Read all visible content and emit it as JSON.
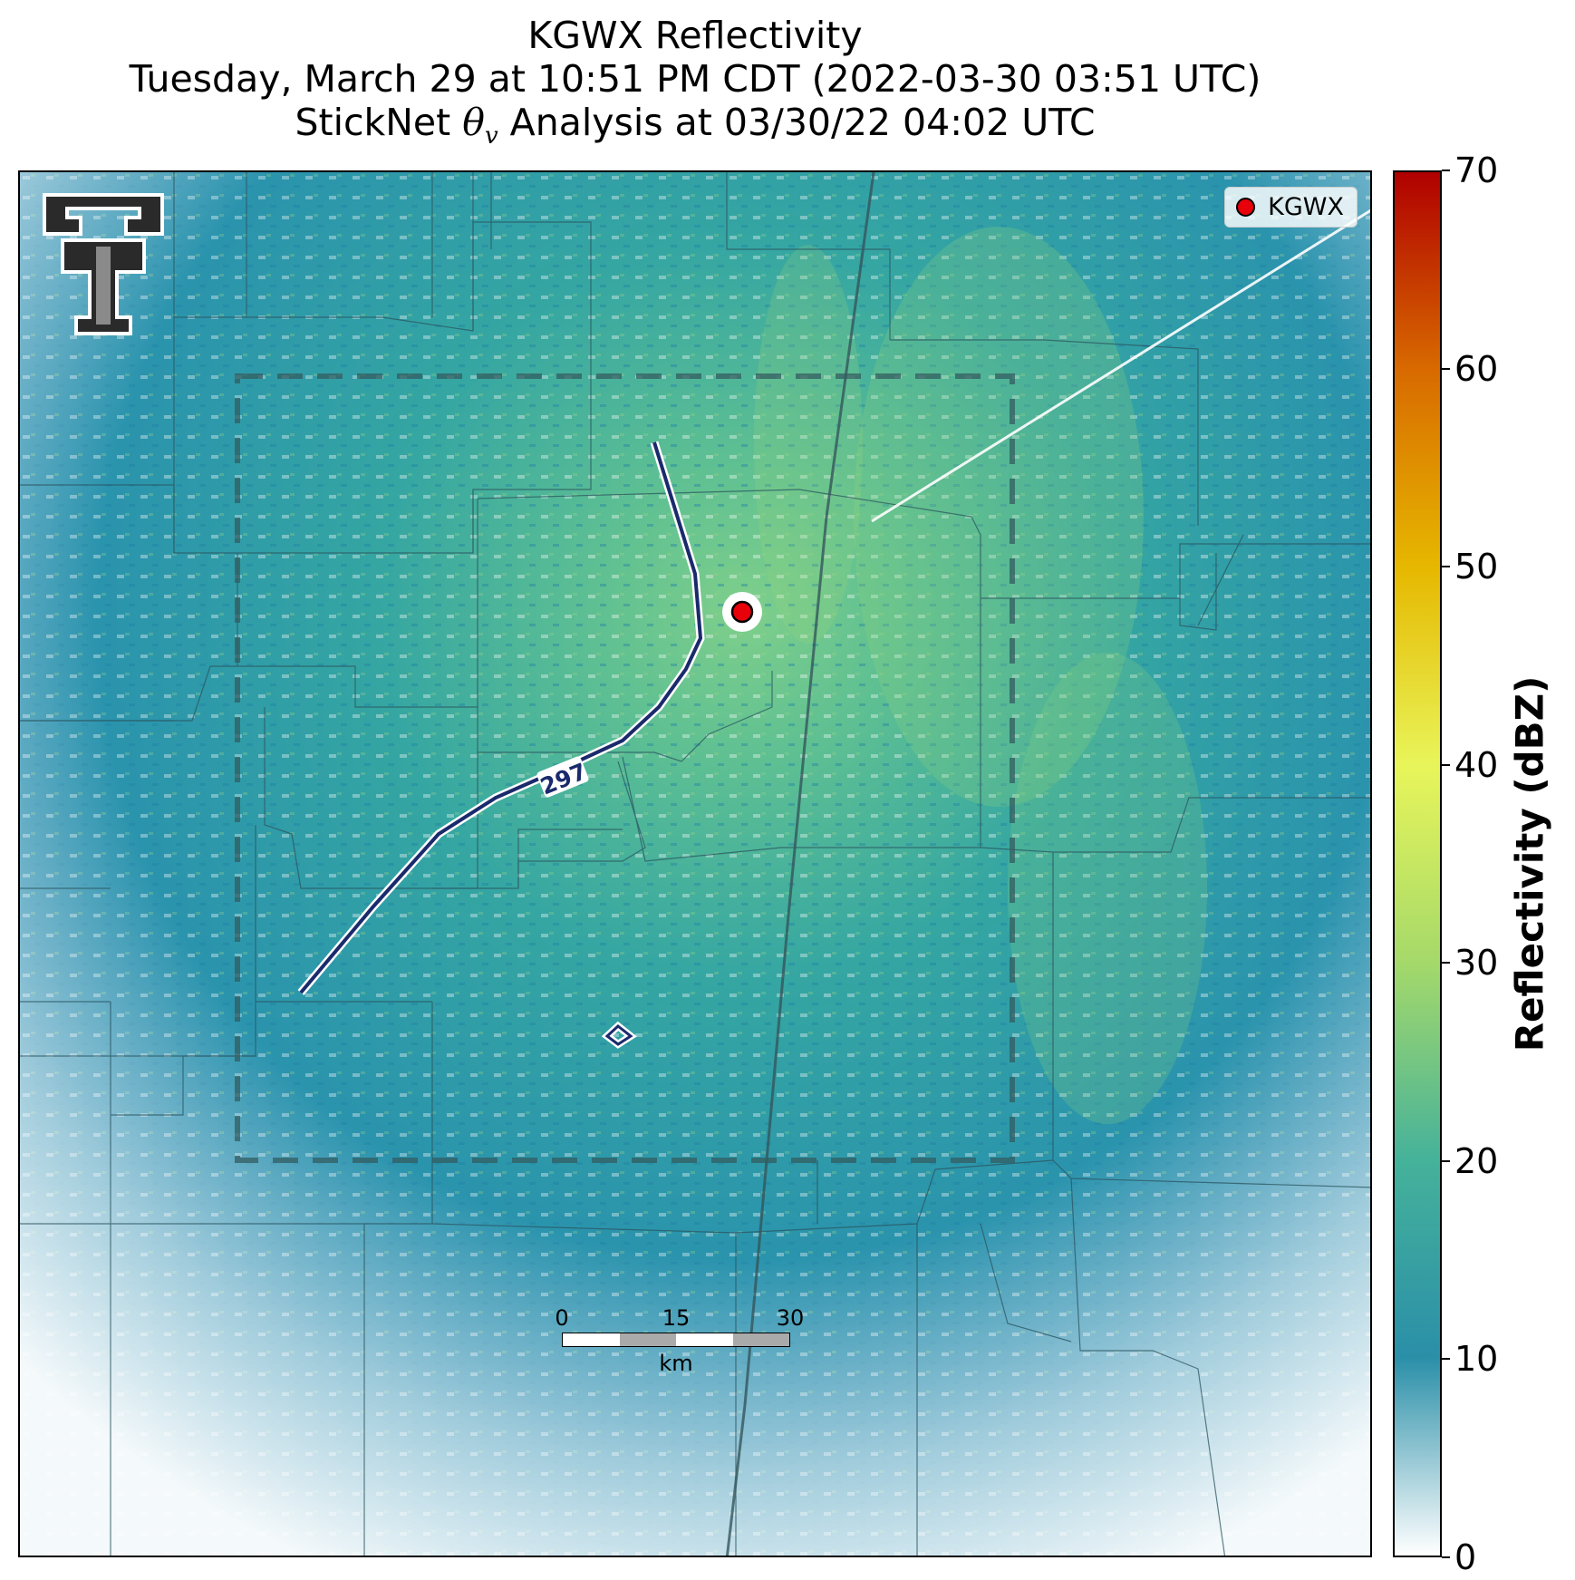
{
  "title": {
    "line1": "KGWX Reflectivity",
    "line2": "Tuesday, March 29 at 10:51 PM CDT (2022-03-30 03:51 UTC)",
    "line3_prefix": "StickNet ",
    "line3_symbol": "θ",
    "line3_subscript": "v",
    "line3_suffix": " Analysis at 03/30/22 04:02 UTC"
  },
  "legend": {
    "label": "KGWX",
    "marker_color": "#e8000b"
  },
  "contour": {
    "label": "297",
    "color": "#1a2a6c"
  },
  "scalebar": {
    "labels": [
      "0",
      "15",
      "30"
    ],
    "unit": "km"
  },
  "colorbar": {
    "label": "Reflectivity (dBZ)",
    "min": 0,
    "max": 70,
    "ticks": [
      "0",
      "10",
      "20",
      "30",
      "40",
      "50",
      "60",
      "70"
    ],
    "colors": [
      "#ffffff",
      "#2a8fa8",
      "#45b29a",
      "#a5d96a",
      "#e8f55a",
      "#e6b800",
      "#d86a00",
      "#b00000"
    ]
  },
  "logo": {
    "icon": "double-t-logo-icon"
  }
}
